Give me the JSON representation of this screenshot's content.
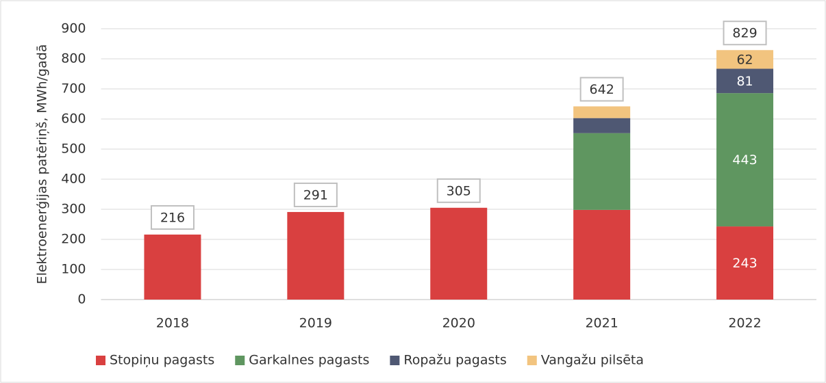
{
  "chart_data": {
    "type": "stacked-bar",
    "y_label": "Elektroenerģijas patēriņš, MWh/gadā",
    "categories": [
      "2018",
      "2019",
      "2020",
      "2021",
      "2022"
    ],
    "series": [
      {
        "name": "Stopiņu pagasts",
        "color": "#d94040",
        "values": [
          216,
          291,
          305,
          298,
          243
        ],
        "value_labels": [
          null,
          null,
          null,
          null,
          "243"
        ]
      },
      {
        "name": "Garkalnes pagasts",
        "color": "#5f9660",
        "values": [
          null,
          null,
          null,
          255,
          443
        ],
        "value_labels": [
          null,
          null,
          null,
          null,
          "443"
        ]
      },
      {
        "name": "Ropažu pagasts",
        "color": "#4f5873",
        "values": [
          null,
          null,
          null,
          50,
          81
        ],
        "value_labels": [
          null,
          null,
          null,
          null,
          "81"
        ]
      },
      {
        "name": "Vangažu pilsēta",
        "color": "#f2c47f",
        "values": [
          null,
          null,
          null,
          39,
          62
        ],
        "value_labels": [
          null,
          null,
          null,
          null,
          "62"
        ]
      }
    ],
    "totals": [
      216,
      291,
      305,
      642,
      829
    ],
    "ylim": [
      0,
      900
    ],
    "yticks": [
      0,
      100,
      200,
      300,
      400,
      500,
      600,
      700,
      800,
      900
    ],
    "grid": true,
    "legend": "bottom"
  }
}
